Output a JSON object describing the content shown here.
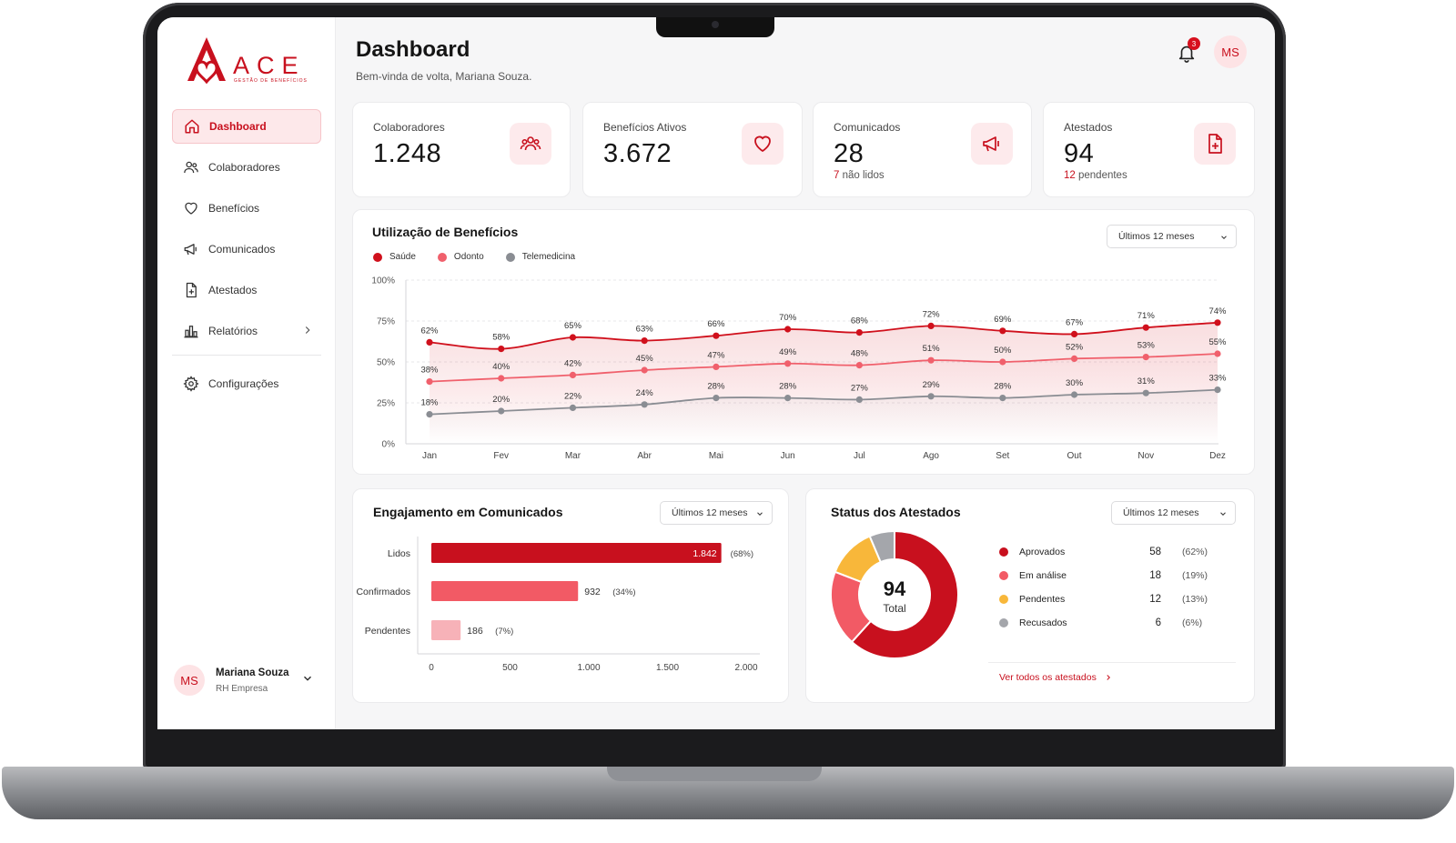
{
  "app": {
    "logo_text": "ACE",
    "logo_tagline": "GESTÃO DE BENEFÍCIOS",
    "brand_color": "#c8101e"
  },
  "sidebar": {
    "items": [
      {
        "label": "Dashboard",
        "icon": "home-icon",
        "active": true
      },
      {
        "label": "Colaboradores",
        "icon": "users-icon"
      },
      {
        "label": "Benefícios",
        "icon": "heart-icon"
      },
      {
        "label": "Comunicados",
        "icon": "megaphone-icon"
      },
      {
        "label": "Atestados",
        "icon": "file-plus-icon"
      },
      {
        "label": "Relatórios",
        "icon": "bar-chart-icon",
        "has_submenu": true
      },
      {
        "label": "Configurações",
        "icon": "gear-icon"
      }
    ],
    "user": {
      "initials": "MS",
      "name": "Mariana Souza",
      "role": "RH Empresa"
    }
  },
  "header": {
    "title": "Dashboard",
    "subtitle": "Bem-vinda de volta, Mariana Souza.",
    "notifications": "3",
    "avatar_initials": "MS"
  },
  "stats": [
    {
      "label": "Colaboradores",
      "value": "1.248",
      "icon": "users-icon"
    },
    {
      "label": "Benefícios Ativos",
      "value": "3.672",
      "icon": "heart-icon"
    },
    {
      "label": "Comunicados",
      "value": "28",
      "note_highlight": "7",
      "note_text": " não lidos",
      "icon": "megaphone-icon"
    },
    {
      "label": "Atestados",
      "value": "94",
      "note_highlight": "12",
      "note_text": " pendentes",
      "icon": "file-plus-icon"
    }
  ],
  "chart_data": [
    {
      "type": "line",
      "title": "Utilização de Benefícios",
      "filter": "Últimos 12 meses",
      "categories": [
        "Jan",
        "Fev",
        "Mar",
        "Abr",
        "Mai",
        "Jun",
        "Jul",
        "Ago",
        "Set",
        "Out",
        "Nov",
        "Dez"
      ],
      "ylim": [
        0,
        100
      ],
      "yticks": [
        "0%",
        "25%",
        "50%",
        "75%",
        "100%"
      ],
      "legend_position": "top-left",
      "grid": true,
      "series": [
        {
          "name": "Saúde",
          "color": "#d0101c",
          "values": [
            62,
            58,
            65,
            63,
            66,
            70,
            68,
            72,
            69,
            67,
            71,
            74
          ]
        },
        {
          "name": "Odonto",
          "color": "#f0606c",
          "values": [
            38,
            40,
            42,
            45,
            47,
            49,
            48,
            51,
            50,
            52,
            53,
            55
          ]
        },
        {
          "name": "Telemedicina",
          "color": "#8a8d93",
          "values": [
            18,
            20,
            22,
            24,
            28,
            28,
            27,
            29,
            28,
            30,
            31,
            33
          ]
        }
      ]
    },
    {
      "type": "bar",
      "orientation": "horizontal",
      "title": "Engajamento em Comunicados",
      "filter": "Últimos 12 meses",
      "categories": [
        "Lidos",
        "Confirmados",
        "Pendentes"
      ],
      "values": [
        1842,
        932,
        186
      ],
      "value_labels": [
        "1.842",
        "932",
        "186"
      ],
      "percent_labels": [
        "(68%)",
        "(34%)",
        "(7%)"
      ],
      "colors": [
        "#c8101e",
        "#f25a65",
        "#f7b2b8"
      ],
      "xlim": [
        0,
        2000
      ],
      "xticks": [
        "0",
        "500",
        "1.000",
        "1.500",
        "2.000"
      ]
    },
    {
      "type": "pie",
      "variant": "donut",
      "title": "Status dos Atestados",
      "filter": "Últimos 12 meses",
      "center_value": "94",
      "center_label": "Total",
      "link": "Ver todos os atestados",
      "slices": [
        {
          "label": "Aprovados",
          "value": 58,
          "pct": "(62%)",
          "color": "#c8101e"
        },
        {
          "label": "Em análise",
          "value": 18,
          "pct": "(19%)",
          "color": "#f25a65"
        },
        {
          "label": "Pendentes",
          "value": 12,
          "pct": "(13%)",
          "color": "#f8b73a"
        },
        {
          "label": "Recusados",
          "value": 6,
          "pct": "(6%)",
          "color": "#a4a6ab"
        }
      ]
    }
  ]
}
